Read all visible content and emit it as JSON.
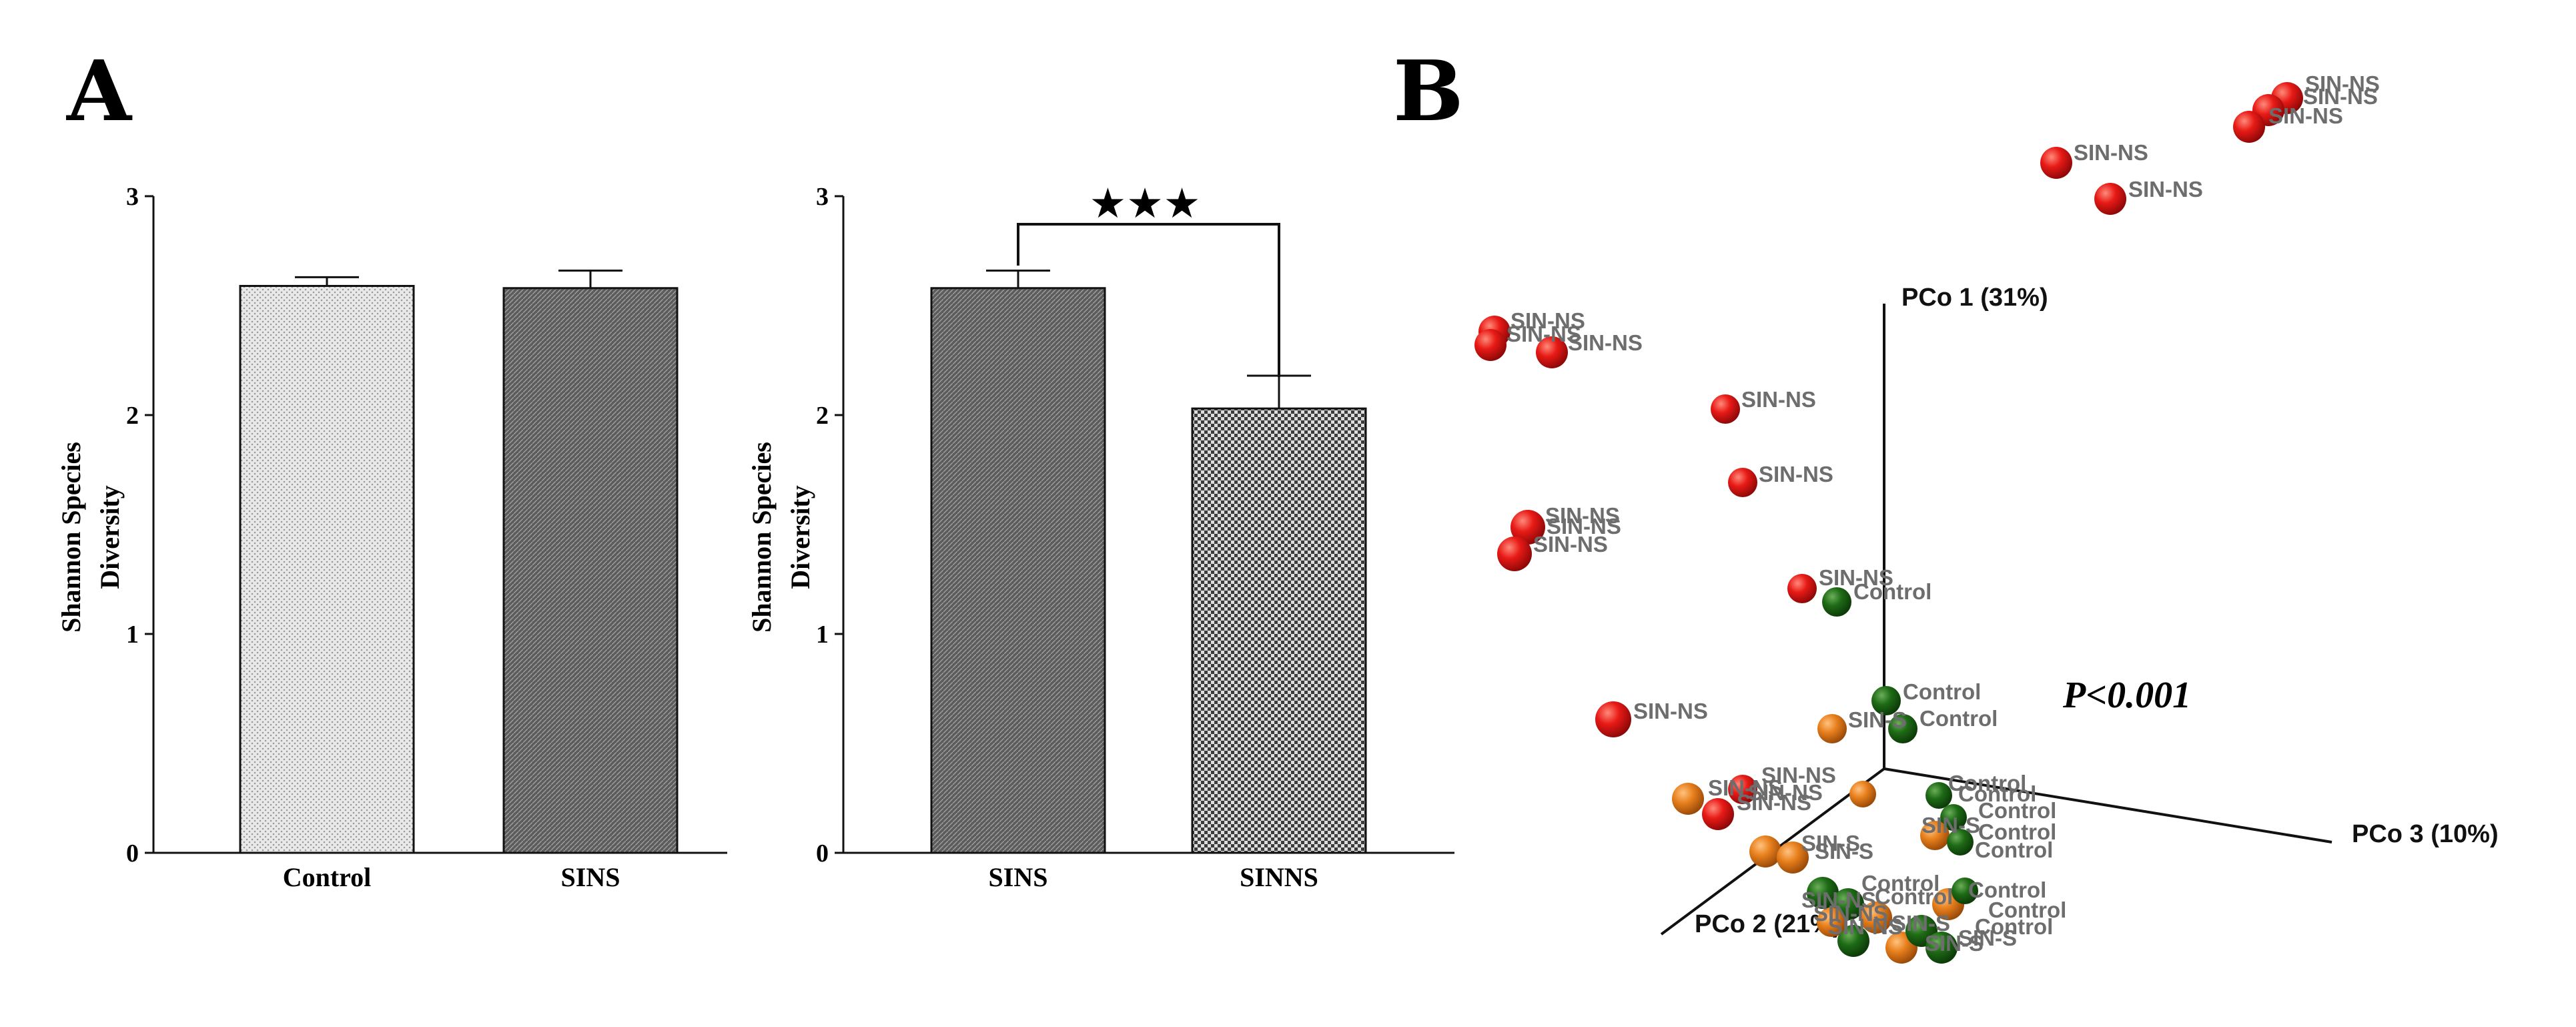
{
  "panels": {
    "a_letter": "A",
    "b_letter": "B"
  },
  "colors": {
    "red": "#e21313",
    "orange": "#e8801d",
    "green": "#1e6b16",
    "label_gray": "#6d6d6d"
  },
  "chart_data": [
    {
      "type": "bar",
      "id": "A-left",
      "title": "",
      "ylabel_line1": "Shannon Species",
      "ylabel_line2": "Diversity",
      "xlabel": "",
      "ylim": [
        0,
        3
      ],
      "yticks": [
        "0",
        "1",
        "2",
        "3"
      ],
      "categories": [
        "Control",
        "SINS"
      ],
      "values": [
        2.59,
        2.58
      ],
      "errors": [
        0.04,
        0.08
      ],
      "fills": [
        "light-dots",
        "dark-diagonal"
      ]
    },
    {
      "type": "bar",
      "id": "A-right",
      "title": "",
      "ylabel_line1": "Shannon Species",
      "ylabel_line2": "Diversity",
      "xlabel": "",
      "ylim": [
        0,
        3
      ],
      "yticks": [
        "0",
        "1",
        "2",
        "3"
      ],
      "categories": [
        "SINS",
        "SINNS"
      ],
      "values": [
        2.58,
        2.03
      ],
      "errors": [
        0.08,
        0.15
      ],
      "fills": [
        "dark-diagonal",
        "checker"
      ],
      "significance": "★★★"
    },
    {
      "type": "scatter",
      "id": "B-pcoa",
      "title": "",
      "axes": {
        "pco1": "PCo 1 (31%)",
        "pco2": "PCo 2 (21%)",
        "pco3": "PCo 3 (10%)"
      },
      "annotation": "P<0.001",
      "groups": [
        "SIN-NS",
        "SIN-S",
        "Control"
      ],
      "labels": {
        "s1": "SIN-NS",
        "s2": "SIN-NS",
        "s3": "SIN-NS",
        "s4": "SIN-NS",
        "s5": "SIN-NS",
        "s6": "SIN-NS",
        "s7": "SIN-NS",
        "s8": "SIN-NS",
        "s9": "SIN-NS",
        "s10": "SIN-NS",
        "s11": "SIN-NS",
        "s12": "SIN-NS",
        "s13": "SIN-NS",
        "s14": "SIN-NS",
        "s15": "SIN-NS",
        "s16": "SIN-NS",
        "s17": "SIN-NS",
        "s18": "SIN-NS",
        "s19": "SIN-NS",
        "s20": "SIN-NS",
        "s21": "SIN-NS",
        "s22": "SIN-NS",
        "c1": "Control",
        "c2": "Control",
        "c3": "Control",
        "o1": "SIN-S",
        "c4": "Control",
        "c5": "Control",
        "c6": "Control",
        "o2": "SIN-S",
        "o3": "SIN-S",
        "o4": "SIN-S",
        "o5": "SIN-S",
        "c7": "Control",
        "c8": "Control",
        "c9": "Control",
        "c10": "Control",
        "c11": "Control",
        "c12": "Control",
        "c13": "Control",
        "o6": "SIN-S",
        "o7": "SIN-S"
      }
    }
  ]
}
